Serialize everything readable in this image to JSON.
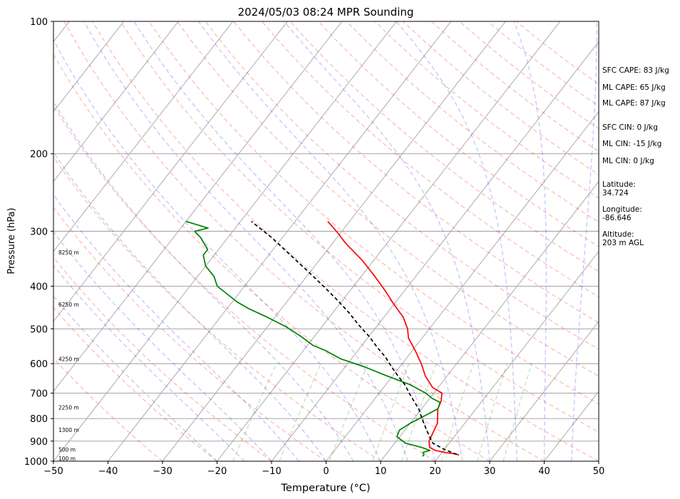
{
  "chart_data": {
    "type": "line",
    "subtype": "skew-t log-p sounding",
    "title": "2024/05/03 08:24 MPR Sounding",
    "xlabel": "Temperature (°C)",
    "ylabel": "Pressure (hPa)",
    "xlim": [
      -50,
      50
    ],
    "ylim": [
      1000,
      100
    ],
    "y_scale": "log",
    "x_ticks": [
      "−50",
      "−40",
      "−30",
      "−20",
      "−10",
      "0",
      "10",
      "20",
      "30",
      "40",
      "50"
    ],
    "x_tick_values": [
      -50,
      -40,
      -30,
      -20,
      -10,
      0,
      10,
      20,
      30,
      40,
      50
    ],
    "y_ticks": [
      "100",
      "200",
      "300",
      "400",
      "500",
      "600",
      "700",
      "800",
      "900",
      "1000"
    ],
    "y_tick_values": [
      100,
      200,
      300,
      400,
      500,
      600,
      700,
      800,
      900,
      1000
    ],
    "grid": true,
    "series": [
      {
        "role": "temperature",
        "color": "#ff0000",
        "style": "solid",
        "pressure": [
          968,
          962,
          955,
          945,
          930,
          900,
          860,
          820,
          790,
          760,
          730,
          700,
          680,
          640,
          600,
          560,
          525,
          500,
          470,
          440,
          410,
          380,
          350,
          320,
          300,
          285
        ],
        "temperature": [
          23.5,
          22.5,
          20.5,
          18.5,
          17.0,
          16.0,
          15.5,
          15.0,
          14.0,
          13.0,
          12.5,
          11.5,
          9.0,
          6.0,
          3.5,
          0.5,
          -2.5,
          -4.0,
          -6.5,
          -10.0,
          -13.5,
          -17.5,
          -22.0,
          -27.5,
          -31.0,
          -34.0
        ]
      },
      {
        "role": "dewpoint",
        "color": "#008000",
        "style": "solid",
        "pressure": [
          975,
          965,
          955,
          945,
          930,
          910,
          880,
          850,
          820,
          800,
          780,
          760,
          735,
          720,
          700,
          670,
          640,
          610,
          585,
          560,
          545,
          520,
          495,
          470,
          450,
          435,
          420,
          400,
          380,
          360,
          340,
          330,
          320,
          310,
          300,
          295,
          285
        ],
        "temperature": [
          17.0,
          17.0,
          16.5,
          17.5,
          15.5,
          12.0,
          9.5,
          9.0,
          10.0,
          11.0,
          12.0,
          13.0,
          12.5,
          10.5,
          8.5,
          4.5,
          -1.0,
          -6.5,
          -12.0,
          -16.0,
          -19.0,
          -22.5,
          -26.5,
          -31.5,
          -36.0,
          -39.0,
          -41.5,
          -45.0,
          -47.0,
          -50.0,
          -52.0,
          -52.0,
          -53.5,
          -55.0,
          -57.0,
          -55.0,
          -60.0
        ]
      },
      {
        "role": "parcel",
        "color": "#000000",
        "style": "dashed",
        "pressure": [
          965,
          940,
          910,
          880,
          850,
          820,
          790,
          760,
          730,
          700,
          670,
          640,
          610,
          580,
          550,
          520,
          490,
          460,
          430,
          400,
          370,
          340,
          310,
          285
        ],
        "temperature": [
          23.0,
          20.0,
          17.0,
          15.5,
          14.0,
          12.5,
          11.0,
          9.5,
          7.5,
          5.5,
          3.5,
          1.0,
          -1.5,
          -4.0,
          -7.0,
          -10.0,
          -13.5,
          -17.0,
          -21.0,
          -25.5,
          -30.5,
          -36.0,
          -42.0,
          -48.0
        ]
      }
    ],
    "height_labels": [
      {
        "text": "100 m",
        "pressure": 985
      },
      {
        "text": "500 m",
        "pressure": 940
      },
      {
        "text": "1300 m",
        "pressure": 848
      },
      {
        "text": "2250 m",
        "pressure": 755
      },
      {
        "text": "4250 m",
        "pressure": 585
      },
      {
        "text": "6250 m",
        "pressure": 440
      },
      {
        "text": "8250 m",
        "pressure": 335
      }
    ]
  },
  "info": {
    "sfc_cape": "SFC CAPE: 83 J/kg",
    "ml_cape_1": "ML CAPE: 65 J/kg",
    "ml_cape_2": "ML CAPE: 87 J/kg",
    "sfc_cin": "SFC CIN: 0 J/kg",
    "ml_cin_1": "ML CIN: -15 J/kg",
    "ml_cin_2": "ML CIN: 0 J/kg",
    "latitude": "Latitude:\n34.724",
    "longitude": "Longitude:\n-86.646",
    "altitude": "Altitude:\n203 m AGL"
  },
  "colors": {
    "isotherm": "#999999",
    "dry_adiabat": "#ff0000",
    "moist_adiabat": "#0000ff",
    "mixing_ratio": "#008000",
    "isobar": "#999999"
  }
}
